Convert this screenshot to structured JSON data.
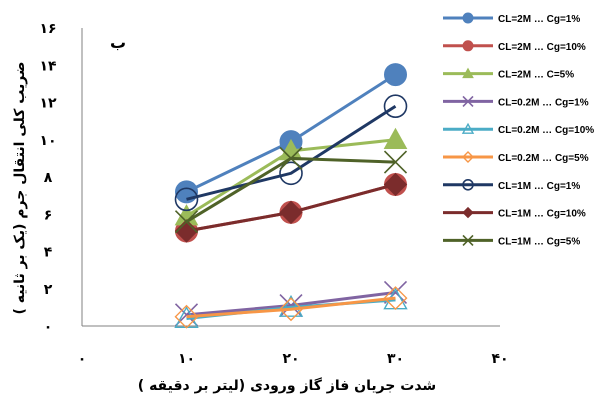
{
  "chart_data": {
    "type": "line",
    "panel_label": "ب",
    "xlabel": "شدت جریان فاز گاز ورودی (لیتر بر دقیقه )",
    "ylabel": "ضریب کلی انتقال جرم (یک بر ثانیه )",
    "xlim": [
      0,
      40
    ],
    "ylim": [
      0,
      16
    ],
    "x_ticks": [
      0,
      10,
      20,
      30,
      40
    ],
    "x_tick_labels": [
      "۰",
      "۱۰",
      "۲۰",
      "۳۰",
      "۴۰"
    ],
    "y_ticks": [
      0,
      2,
      4,
      6,
      8,
      10,
      12,
      14,
      16
    ],
    "y_tick_labels": [
      "۰",
      "۲",
      "۴",
      "۶",
      "۸",
      "۱۰",
      "۱۲",
      "۱۴",
      "۱۶"
    ],
    "x": [
      10,
      20,
      30
    ],
    "grid": false,
    "legend_position": "right",
    "series": [
      {
        "name": "CL=2M … Cg=1%",
        "values": [
          7.2,
          9.9,
          13.5
        ],
        "color": "#4f81bd",
        "marker": "circle"
      },
      {
        "name": "CL=2M … Cg=10%",
        "values": [
          5.1,
          6.1,
          7.6
        ],
        "color": "#c0504d",
        "marker": "circle"
      },
      {
        "name": "CL=2M … C=5%",
        "values": [
          5.9,
          9.4,
          10.0
        ],
        "color": "#9bbb59",
        "marker": "triangle"
      },
      {
        "name": "CL=0.2M … Cg=1%",
        "values": [
          0.6,
          1.1,
          1.8
        ],
        "color": "#8064a2",
        "marker": "x"
      },
      {
        "name": "CL=0.2M … Cg=10%",
        "values": [
          0.4,
          1.0,
          1.4
        ],
        "color": "#4bacc6",
        "marker": "triangle-open"
      },
      {
        "name": "CL=0.2M … Cg=5%",
        "values": [
          0.5,
          0.9,
          1.5
        ],
        "color": "#f79646",
        "marker": "diamond-open"
      },
      {
        "name": "CL=1M … Cg=1%",
        "values": [
          6.8,
          8.2,
          11.8
        ],
        "color": "#1f3864",
        "marker": "circle-open"
      },
      {
        "name": "CL=1M … Cg=10%",
        "values": [
          5.1,
          6.1,
          7.6
        ],
        "color": "#7b2c2c",
        "marker": "diamond"
      },
      {
        "name": "CL=1M … Cg=5%",
        "values": [
          5.6,
          9.0,
          8.8
        ],
        "color": "#4f6228",
        "marker": "x"
      }
    ]
  }
}
